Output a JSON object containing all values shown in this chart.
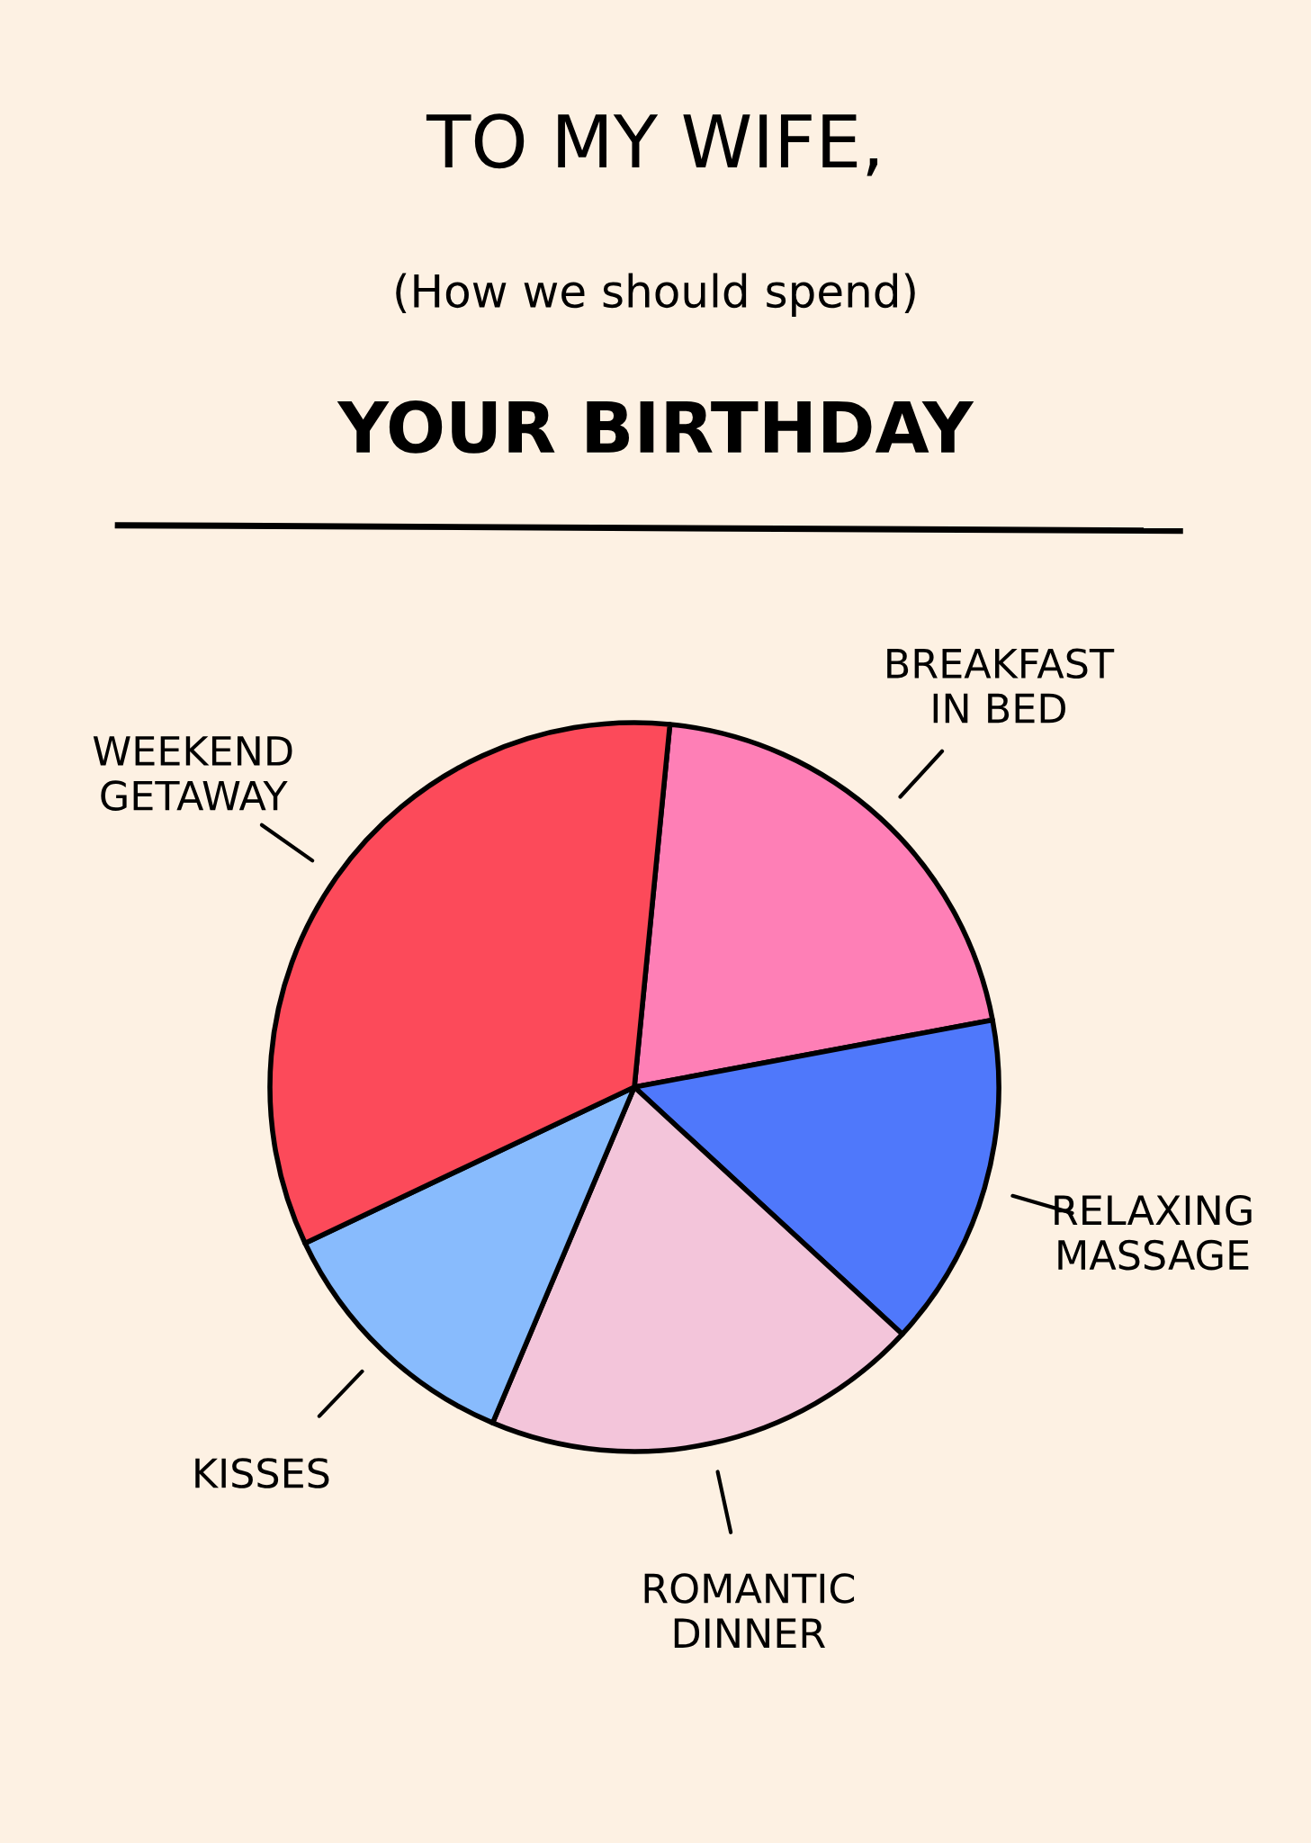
{
  "chart_data": {
    "type": "pie",
    "title": "TO MY WIFE,",
    "subtitle": "(How we should spend)",
    "annotations": [
      "YOUR BIRTHDAY"
    ],
    "categories": [
      "BREAKFAST\nIN BED",
      "RELAXING\nMASSAGE",
      "ROMANTIC\nDINNER",
      "KISSES",
      "WEEKEND\nGETAWAY"
    ],
    "values": [
      20.5,
      14.8,
      19.5,
      11.6,
      33.6
    ],
    "colors": [
      "#fe7fb6",
      "#4f78fb",
      "#f3c5da",
      "#88bbfd",
      "#fc4a5a"
    ],
    "legend": false
  }
}
